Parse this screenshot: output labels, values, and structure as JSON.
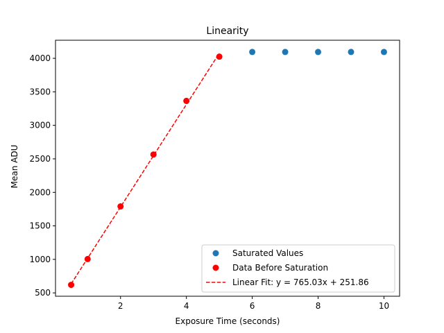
{
  "chart_data": {
    "type": "scatter",
    "title": "Linearity",
    "xlabel": "Exposure Time (seconds)",
    "ylabel": "Mean ADU",
    "xlim": [
      0.025,
      10.475
    ],
    "ylim": [
      450,
      4270
    ],
    "x_ticks": [
      2,
      4,
      6,
      8,
      10
    ],
    "y_ticks": [
      500,
      1000,
      1500,
      2000,
      2500,
      3000,
      3500,
      4000
    ],
    "grid": false,
    "legend_position": "lower-right",
    "series": [
      {
        "name": "Saturated Values",
        "kind": "scatter",
        "color": "#1f77b4",
        "x": [
          6,
          7,
          8,
          9,
          10
        ],
        "y": [
          4095,
          4095,
          4095,
          4095,
          4095
        ]
      },
      {
        "name": "Data Before Saturation",
        "kind": "scatter",
        "color": "#ff0000",
        "x": [
          0.5,
          1,
          2,
          3,
          4,
          5
        ],
        "y": [
          620,
          1005,
          1790,
          2565,
          3365,
          4025
        ]
      },
      {
        "name": "Linear Fit: y = 765.03x + 251.86",
        "kind": "line",
        "style": "dashed",
        "color": "#ff0000",
        "slope": 765.03,
        "intercept": 251.86,
        "x_range": [
          0.5,
          5
        ]
      }
    ]
  }
}
